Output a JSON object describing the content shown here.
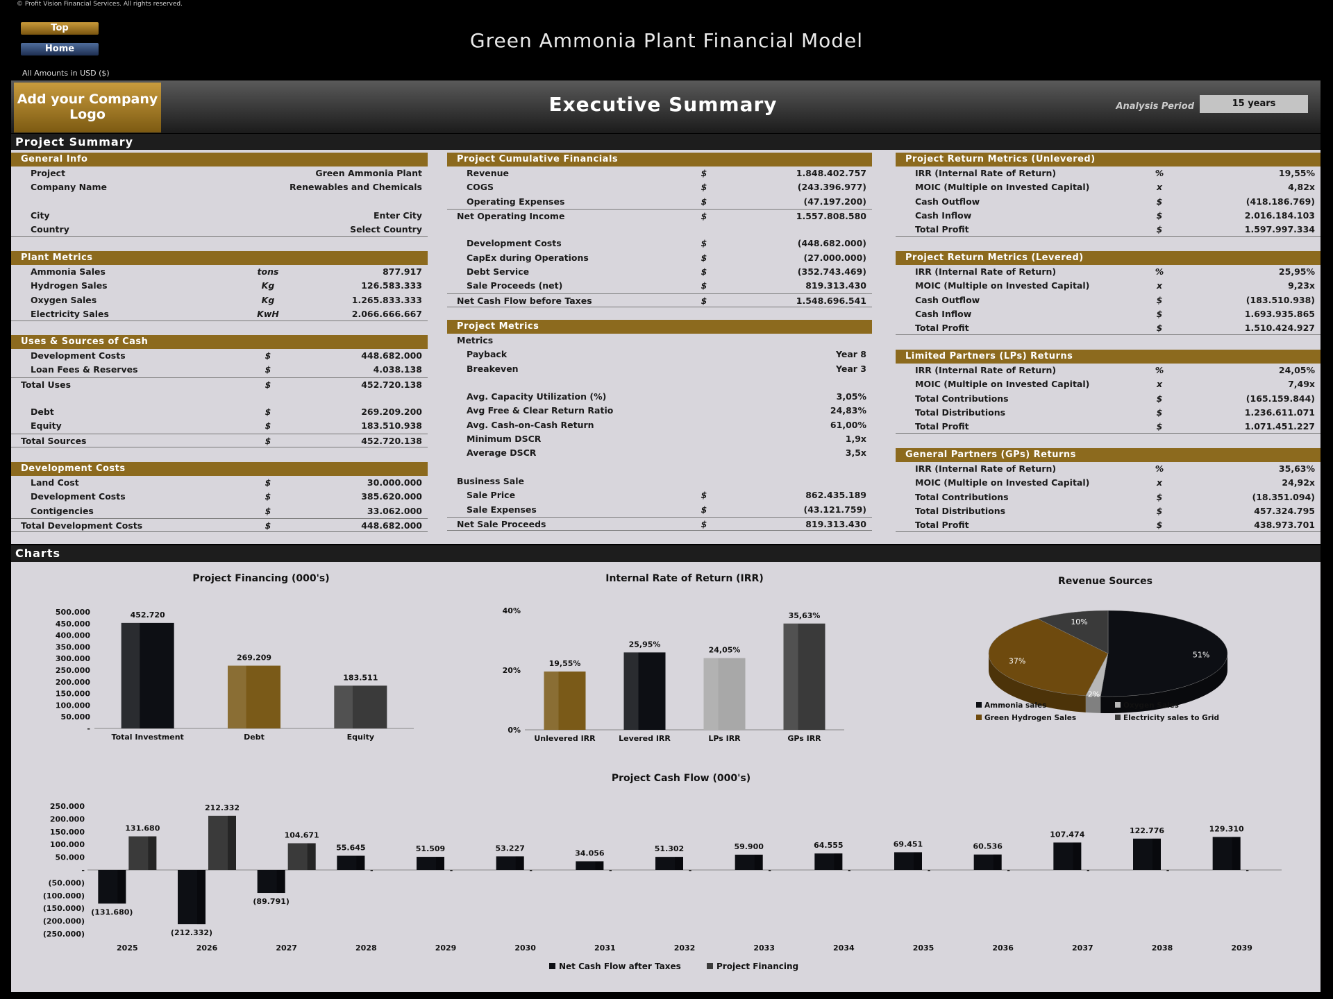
{
  "copyright": "© Profit Vision Financial Services. All rights reserved.",
  "nav": {
    "top_label": "Top",
    "home_label": "Home"
  },
  "app_title": "Green Ammonia Plant Financial Model",
  "amounts_note": "All Amounts in  USD ($)",
  "logo_text": "Add your Company Logo",
  "page_title": "Executive Summary",
  "analysis_period": {
    "label": "Analysis Period",
    "value": "15 years"
  },
  "sections": {
    "summary": "Project Summary",
    "charts": "Charts"
  },
  "general_info": {
    "title": "General Info",
    "rows": [
      {
        "label": "Project",
        "value": "Green Ammonia Plant"
      },
      {
        "label": "Company Name",
        "value": "Renewables and Chemicals"
      },
      {
        "label": "",
        "value": ""
      },
      {
        "label": "City",
        "value": "Enter City"
      },
      {
        "label": "Country",
        "value": "Select Country"
      }
    ]
  },
  "plant_metrics": {
    "title": "Plant Metrics",
    "rows": [
      {
        "label": "Ammonia Sales",
        "unit": "tons",
        "value": "877.917"
      },
      {
        "label": "Hydrogen Sales",
        "unit": "Kg",
        "value": "126.583.333"
      },
      {
        "label": "Oxygen Sales",
        "unit": "Kg",
        "value": "1.265.833.333"
      },
      {
        "label": "Electricity  Sales",
        "unit": "KwH",
        "value": "2.066.666.667"
      }
    ]
  },
  "uses_sources": {
    "title": "Uses & Sources of Cash",
    "rows": [
      {
        "label": "Development Costs",
        "unit": "$",
        "value": "448.682.000"
      },
      {
        "label": "Loan Fees & Reserves",
        "unit": "$",
        "value": "4.038.138"
      },
      {
        "label": "Total Uses",
        "unit": "$",
        "value": "452.720.138"
      },
      {
        "label": "",
        "unit": "",
        "value": ""
      },
      {
        "label": "Debt",
        "unit": "$",
        "value": "269.209.200"
      },
      {
        "label": "Equity",
        "unit": "$",
        "value": "183.510.938"
      },
      {
        "label": "Total Sources",
        "unit": "$",
        "value": "452.720.138"
      }
    ]
  },
  "development_costs": {
    "title": "Development Costs",
    "rows": [
      {
        "label": "Land Cost",
        "unit": "$",
        "value": "30.000.000"
      },
      {
        "label": "Development Costs",
        "unit": "$",
        "value": "385.620.000"
      },
      {
        "label": "Contigencies",
        "unit": "$",
        "value": "33.062.000"
      },
      {
        "label": "Total Development Costs",
        "unit": "$",
        "value": "448.682.000"
      }
    ]
  },
  "cumulative": {
    "title": "Project Cumulative Financials",
    "rows": [
      {
        "label": "Revenue",
        "unit": "$",
        "value": "1.848.402.757"
      },
      {
        "label": "COGS",
        "unit": "$",
        "value": "(243.396.977)"
      },
      {
        "label": "Operating Expenses",
        "unit": "$",
        "value": "(47.197.200)"
      },
      {
        "label": "Net Operating Income",
        "unit": "$",
        "value": "1.557.808.580"
      },
      {
        "label": "",
        "unit": "",
        "value": ""
      },
      {
        "label": "Development Costs",
        "unit": "$",
        "value": "(448.682.000)"
      },
      {
        "label": "CapEx during Operations",
        "unit": "$",
        "value": "(27.000.000)"
      },
      {
        "label": "Debt Service",
        "unit": "$",
        "value": "(352.743.469)"
      },
      {
        "label": "Sale Proceeds (net)",
        "unit": "$",
        "value": "819.313.430"
      },
      {
        "label": "Net Cash Flow before Taxes",
        "unit": "$",
        "value": "1.548.696.541"
      }
    ]
  },
  "project_metrics": {
    "title": "Project Metrics",
    "rows": [
      {
        "label": "Metrics",
        "unit": "",
        "value": ""
      },
      {
        "label": "Payback",
        "unit": "",
        "value": "Year 8"
      },
      {
        "label": "Breakeven",
        "unit": "",
        "value": "Year 3"
      },
      {
        "label": "",
        "unit": "",
        "value": ""
      },
      {
        "label": "Avg. Capacity Utilization (%)",
        "unit": "",
        "value": "3,05%"
      },
      {
        "label": "Avg Free & Clear Return Ratio",
        "unit": "",
        "value": "24,83%"
      },
      {
        "label": "Avg. Cash-on-Cash Return",
        "unit": "",
        "value": "61,00%"
      },
      {
        "label": "Minimum DSCR",
        "unit": "",
        "value": "1,9x"
      },
      {
        "label": "Average DSCR",
        "unit": "",
        "value": "3,5x"
      },
      {
        "label": "",
        "unit": "",
        "value": ""
      },
      {
        "label": "Business Sale",
        "unit": "",
        "value": ""
      },
      {
        "label": "Sale Price",
        "unit": "$",
        "value": "862.435.189"
      },
      {
        "label": "Sale Expenses",
        "unit": "$",
        "value": "(43.121.759)"
      },
      {
        "label": "Net Sale Proceeds",
        "unit": "$",
        "value": "819.313.430"
      }
    ]
  },
  "unlevered": {
    "title": "Project Return Metrics (Unlevered)",
    "rows": [
      {
        "label": "IRR (Internal Rate of Return)",
        "unit": "%",
        "value": "19,55%"
      },
      {
        "label": "MOIC (Multiple on Invested Capital)",
        "unit": "x",
        "value": "4,82x"
      },
      {
        "label": "Cash Outflow",
        "unit": "$",
        "value": "(418.186.769)"
      },
      {
        "label": "Cash Inflow",
        "unit": "$",
        "value": "2.016.184.103"
      },
      {
        "label": "Total Profit",
        "unit": "$",
        "value": "1.597.997.334"
      }
    ]
  },
  "levered": {
    "title": "Project Return Metrics (Levered)",
    "rows": [
      {
        "label": "IRR (Internal Rate of Return)",
        "unit": "%",
        "value": "25,95%"
      },
      {
        "label": "MOIC (Multiple on Invested Capital)",
        "unit": "x",
        "value": "9,23x"
      },
      {
        "label": "Cash Outflow",
        "unit": "$",
        "value": "(183.510.938)"
      },
      {
        "label": "Cash Inflow",
        "unit": "$",
        "value": "1.693.935.865"
      },
      {
        "label": "Total Profit",
        "unit": "$",
        "value": "1.510.424.927"
      }
    ]
  },
  "lp_returns": {
    "title": "Limited Partners (LPs) Returns",
    "rows": [
      {
        "label": "IRR (Internal Rate of Return)",
        "unit": "%",
        "value": "24,05%"
      },
      {
        "label": "MOIC (Multiple on Invested Capital)",
        "unit": "x",
        "value": "7,49x"
      },
      {
        "label": "Total Contributions",
        "unit": "$",
        "value": "(165.159.844)"
      },
      {
        "label": "Total Distributions",
        "unit": "$",
        "value": "1.236.611.071"
      },
      {
        "label": "Total Profit",
        "unit": "$",
        "value": "1.071.451.227"
      }
    ]
  },
  "gp_returns": {
    "title": "General Partners (GPs) Returns",
    "rows": [
      {
        "label": "IRR (Internal Rate of Return)",
        "unit": "%",
        "value": "35,63%"
      },
      {
        "label": "MOIC (Multiple on Invested Capital)",
        "unit": "x",
        "value": "24,92x"
      },
      {
        "label": "Total Contributions",
        "unit": "$",
        "value": "(18.351.094)"
      },
      {
        "label": "Total Distributions",
        "unit": "$",
        "value": "457.324.795"
      },
      {
        "label": "Total Profit",
        "unit": "$",
        "value": "438.973.701"
      }
    ]
  },
  "chart_data": [
    {
      "type": "bar",
      "title": "Project Financing (000's)",
      "categories": [
        "Total Investment",
        "Debt",
        "Equity"
      ],
      "values": [
        452720,
        269209,
        183511
      ],
      "value_labels": [
        "452.720",
        "269.209",
        "183.511"
      ],
      "ylim": [
        0,
        500000
      ],
      "ytick_labels": [
        "-",
        "50.000",
        "100.000",
        "150.000",
        "200.000",
        "250.000",
        "300.000",
        "350.000",
        "400.000",
        "450.000",
        "500.000"
      ],
      "colors": [
        "#0d0f14",
        "#7a5a18",
        "#3a3a3a"
      ]
    },
    {
      "type": "bar",
      "title": "Internal Rate of Return (IRR)",
      "categories": [
        "Unlevered IRR",
        "Levered IRR",
        "LPs IRR",
        "GPs IRR"
      ],
      "values": [
        19.55,
        25.95,
        24.05,
        35.63
      ],
      "value_labels": [
        "19,55%",
        "25,95%",
        "24,05%",
        "35,63%"
      ],
      "ylim": [
        0,
        40
      ],
      "ytick_labels": [
        "0%",
        "20%",
        "40%"
      ],
      "colors": [
        "#7a5a18",
        "#0d0f14",
        "#a8a8a8",
        "#3a3a3a"
      ]
    },
    {
      "type": "pie",
      "title": "Revenue Sources",
      "categories": [
        "Ammonia sales",
        "Oxygen Sales",
        "Green Hydrogen Sales",
        "Electricity sales to Grid"
      ],
      "values": [
        51,
        2,
        37,
        10
      ],
      "value_labels": [
        "51%",
        "2%",
        "37%",
        "10%"
      ],
      "colors": [
        "#0d0f14",
        "#b8b8b8",
        "#6e4a0e",
        "#3a3a3a"
      ]
    },
    {
      "type": "bar",
      "title": "Project Cash Flow (000's)",
      "categories": [
        "2025",
        "2026",
        "2027",
        "2028",
        "2029",
        "2030",
        "2031",
        "2032",
        "2033",
        "2034",
        "2035",
        "2036",
        "2037",
        "2038",
        "2039"
      ],
      "series": [
        {
          "name": "Net Cash Flow after Taxes",
          "values": [
            -131680,
            -212332,
            -89791,
            55645,
            51509,
            53227,
            34056,
            51302,
            59900,
            64555,
            69451,
            60536,
            107474,
            122776,
            129310
          ],
          "labels": [
            "(131.680)",
            "(212.332)",
            "(89.791)",
            "55.645",
            "51.509",
            "53.227",
            "34.056",
            "51.302",
            "59.900",
            "64.555",
            "69.451",
            "60.536",
            "107.474",
            "122.776",
            "129.310"
          ]
        },
        {
          "name": "Project Financing",
          "values": [
            131680,
            212332,
            104671,
            0,
            0,
            0,
            0,
            0,
            0,
            0,
            0,
            0,
            0,
            0,
            0
          ],
          "labels": [
            "131.680",
            "212.332",
            "104.671",
            "-",
            "-",
            "-",
            "-",
            "-",
            "-",
            "-",
            "-",
            "-",
            "-",
            "-",
            "-"
          ]
        }
      ],
      "ylim": [
        -250000,
        250000
      ],
      "ytick_labels": [
        "(250.000)",
        "(200.000)",
        "(150.000)",
        "(100.000)",
        "(50.000)",
        "-",
        "50.000",
        "100.000",
        "150.000",
        "200.000",
        "250.000"
      ],
      "colors": [
        "#0d0f14",
        "#3a3a3a"
      ]
    }
  ]
}
